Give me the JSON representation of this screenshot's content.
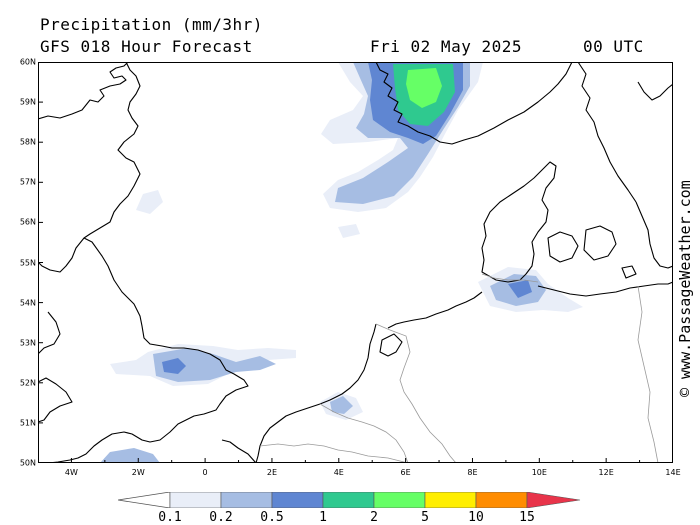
{
  "header": {
    "title": "Precipitation (mm/3hr)",
    "model_run": "GFS 018 Hour Forecast",
    "valid_date": "Fri 02 May 2025",
    "valid_time": "00 UTC"
  },
  "credit": "© www.PassageWeather.com",
  "map": {
    "lat_labels": [
      "60N",
      "59N",
      "58N",
      "57N",
      "56N",
      "55N",
      "54N",
      "53N",
      "52N",
      "51N",
      "50N"
    ],
    "lon_labels": [
      "4W",
      "2W",
      "0",
      "2E",
      "4E",
      "6E",
      "8E",
      "10E",
      "12E",
      "14E"
    ],
    "land_color": "#ffffff",
    "coast_color": "#000000",
    "border_color": "#9a9a9a"
  },
  "legend": {
    "labels": [
      "0.1",
      "0.2",
      "0.5",
      "1",
      "2",
      "5",
      "10",
      "15"
    ],
    "colors": [
      "#e9eef8",
      "#a6bde3",
      "#5f86d2",
      "#2fc98f",
      "#66ff66",
      "#ffee00",
      "#ff8c00",
      "#e8344a"
    ]
  }
}
